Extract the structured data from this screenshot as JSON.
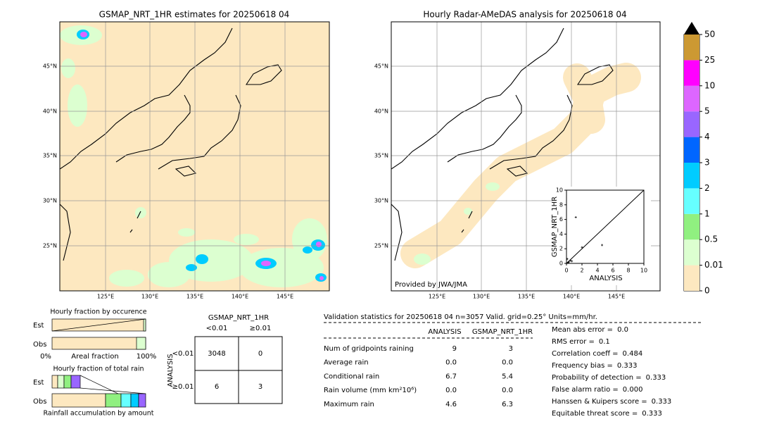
{
  "left_map": {
    "title": "GSMAP_NRT_1HR estimates for 20250618 04",
    "lat_labels": [
      "45°N",
      "40°N",
      "35°N",
      "30°N",
      "25°N"
    ],
    "lon_labels": [
      "125°E",
      "130°E",
      "135°E",
      "140°E",
      "145°E"
    ]
  },
  "right_map": {
    "title": "Hourly Radar-AMeDAS analysis for 20250618 04",
    "credit": "Provided by JWA/JMA",
    "lat_labels": [
      "45°N",
      "40°N",
      "35°N",
      "30°N",
      "25°N"
    ],
    "lon_labels": [
      "125°E",
      "130°E",
      "135°E",
      "140°E",
      "145°E"
    ]
  },
  "colorbar": {
    "levels": [
      0,
      0.01,
      0.5,
      1,
      2,
      3,
      4,
      5,
      10,
      25,
      50
    ],
    "colors": [
      "#fde8c0",
      "#dcffd0",
      "#90f080",
      "#66ffff",
      "#00ccff",
      "#0066ff",
      "#9966ff",
      "#dd66ff",
      "#ff00ff",
      "#cc9933"
    ],
    "extend_color": "#000000"
  },
  "chart_data": {
    "type": "scatter",
    "xlabel": "ANALYSIS",
    "ylabel": "GSMAP_NRT_1HR",
    "x": [
      1.2,
      4.6,
      2.0,
      0.1,
      0.3,
      0.5,
      0.2,
      0.7
    ],
    "values": [
      6.3,
      2.5,
      2.2,
      0.6,
      0.2,
      0.4,
      0.1,
      0.3
    ],
    "xlim": [
      0,
      10
    ],
    "ylim": [
      0,
      10
    ],
    "xticks": [
      0,
      2,
      4,
      6,
      8,
      10
    ],
    "yticks": [
      0,
      2,
      4,
      6,
      8,
      10
    ],
    "color": "#000000"
  },
  "fraction": {
    "occurrence_title": "Hourly fraction by occurence",
    "rows": [
      "Est",
      "Obs"
    ],
    "axis": [
      "0%",
      "Areal fraction",
      "100%"
    ],
    "total_title": "Hourly fraction of total rain",
    "total_rows": [
      "Est",
      "Obs"
    ],
    "total_caption": "Rainfall accumulation by amount"
  },
  "contingency": {
    "column_title": "GSMAP_NRT_1HR",
    "columns": [
      "<0.01",
      "≥0.01"
    ],
    "row_title": "ANALYSIS",
    "rows": [
      "<0.01",
      "≥0.01"
    ],
    "cells": [
      [
        3048,
        0
      ],
      [
        6,
        3
      ]
    ]
  },
  "validation": {
    "header": "Validation statistics for 20250618 04  n=3057 Valid. grid=0.25° Units=mm/hr.",
    "columns": [
      "ANALYSIS",
      "GSMAP_NRT_1HR"
    ],
    "rows": [
      {
        "label": "Num of gridpoints raining",
        "values": [
          "9",
          "3"
        ]
      },
      {
        "label": "Average rain",
        "values": [
          "0.0",
          "0.0"
        ]
      },
      {
        "label": "Conditional rain",
        "values": [
          "6.7",
          "5.4"
        ]
      },
      {
        "label": "Rain volume (mm km²10⁶)",
        "values": [
          "0.0",
          "0.0"
        ]
      },
      {
        "label": "Maximum rain",
        "values": [
          "4.6",
          "6.3"
        ]
      }
    ],
    "scores": [
      {
        "label": "Mean abs error =",
        "value": "0.0"
      },
      {
        "label": "RMS error =",
        "value": "0.1"
      },
      {
        "label": "Correlation coeff =",
        "value": "0.484"
      },
      {
        "label": "Frequency bias =",
        "value": "0.333"
      },
      {
        "label": "Probability of detection =",
        "value": "0.333"
      },
      {
        "label": "False alarm ratio =",
        "value": "0.000"
      },
      {
        "label": "Hanssen & Kuipers score =",
        "value": "0.333"
      },
      {
        "label": "Equitable threat score =",
        "value": "0.333"
      }
    ]
  }
}
